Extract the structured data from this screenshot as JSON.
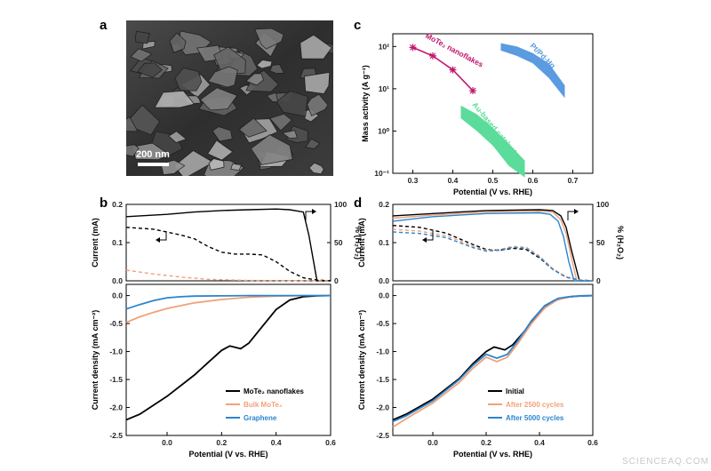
{
  "figure": {
    "panel_letters": [
      "a",
      "b",
      "c",
      "d"
    ],
    "sem_scalebar_label": "200 nm",
    "watermark": "SCIENCEAQ.COM"
  },
  "chart_data": [
    {
      "id": "c",
      "type": "line",
      "xlabel": "Potential (V vs. RHE)",
      "ylabel": "Mass activity (A g⁻¹)",
      "yscale": "log",
      "xlim": [
        0.25,
        0.75
      ],
      "ylim": [
        0.1,
        200
      ],
      "xticks": [
        0.3,
        0.4,
        0.5,
        0.6,
        0.7
      ],
      "yticks": [
        0.1,
        1,
        10,
        100
      ],
      "ytick_labels": [
        "10⁻¹",
        "10⁰",
        "10¹",
        "10²"
      ],
      "series": [
        {
          "name": "MoTe₂ nanoflakes",
          "color": "#c0176f",
          "x": [
            0.3,
            0.35,
            0.4,
            0.45
          ],
          "y": [
            95,
            60,
            28,
            9
          ]
        }
      ],
      "bands": [
        {
          "name": "Pt/Pd-Hg",
          "color": "#5b9be0",
          "x": [
            0.52,
            0.56,
            0.6,
            0.64,
            0.68
          ],
          "upper": [
            120,
            100,
            70,
            40,
            12
          ],
          "lower": [
            80,
            60,
            40,
            18,
            6
          ]
        },
        {
          "name": "Au-based catalysts",
          "color": "#5bdc9a",
          "x": [
            0.42,
            0.46,
            0.5,
            0.54,
            0.58
          ],
          "upper": [
            4,
            2.5,
            1.2,
            0.5,
            0.2
          ],
          "lower": [
            2,
            1,
            0.45,
            0.15,
            0.08
          ]
        }
      ]
    },
    {
      "id": "b_top",
      "type": "line",
      "ylabel_left": "Current (mA)",
      "ylabel_right": "% (H₂O₂)",
      "xlim": [
        -0.15,
        0.6
      ],
      "ylim_left": [
        0,
        0.2
      ],
      "ylim_right": [
        0,
        100
      ],
      "yticks_left": [
        0.0,
        0.1,
        0.2
      ],
      "yticks_right": [
        0,
        50,
        100
      ],
      "series": [
        {
          "name": "MoTe₂ nanoflakes H₂O₂ %",
          "axis": "right",
          "color": "#000000",
          "style": "solid",
          "x": [
            -0.15,
            0.0,
            0.1,
            0.2,
            0.3,
            0.4,
            0.45,
            0.5,
            0.52,
            0.55,
            0.6
          ],
          "y": [
            84,
            87,
            90,
            92,
            93,
            94,
            93,
            90,
            60,
            0,
            0
          ]
        },
        {
          "name": "MoTe₂ nanoflakes ring current",
          "axis": "left",
          "color": "#000000",
          "style": "dash",
          "x": [
            -0.15,
            -0.05,
            0.05,
            0.1,
            0.15,
            0.2,
            0.25,
            0.3,
            0.35,
            0.4,
            0.45,
            0.5,
            0.55,
            0.6
          ],
          "y": [
            0.14,
            0.135,
            0.12,
            0.11,
            0.09,
            0.075,
            0.07,
            0.07,
            0.068,
            0.05,
            0.025,
            0.008,
            0.002,
            0.0
          ]
        },
        {
          "name": "Bulk MoTe₂ ring current",
          "axis": "left",
          "color": "#f0a27a",
          "style": "dash",
          "x": [
            -0.15,
            -0.05,
            0.05,
            0.15,
            0.3,
            0.6
          ],
          "y": [
            0.028,
            0.018,
            0.01,
            0.004,
            0.001,
            0.0
          ]
        }
      ]
    },
    {
      "id": "b_bottom",
      "type": "line",
      "xlabel": "Potential (V vs. RHE)",
      "ylabel": "Current density (mA cm⁻²)",
      "xlim": [
        -0.15,
        0.6
      ],
      "ylim": [
        -2.5,
        0.2
      ],
      "xticks": [
        0.0,
        0.2,
        0.4,
        0.6
      ],
      "yticks": [
        0.0,
        -0.5,
        -1.0,
        -1.5,
        -2.0,
        -2.5
      ],
      "legend_position": "bottom-right",
      "series": [
        {
          "name": "MoTe₂ nanoflakes",
          "color": "#000000",
          "x": [
            -0.15,
            -0.1,
            0.0,
            0.1,
            0.15,
            0.2,
            0.23,
            0.27,
            0.3,
            0.35,
            0.4,
            0.45,
            0.5,
            0.55,
            0.6
          ],
          "y": [
            -2.22,
            -2.12,
            -1.8,
            -1.42,
            -1.2,
            -0.98,
            -0.9,
            -0.95,
            -0.85,
            -0.55,
            -0.25,
            -0.08,
            -0.02,
            -0.005,
            0.0
          ]
        },
        {
          "name": "Bulk MoTe₂",
          "color": "#f0a27a",
          "x": [
            -0.15,
            -0.1,
            -0.05,
            0.0,
            0.1,
            0.2,
            0.3,
            0.4,
            0.5,
            0.6
          ],
          "y": [
            -0.48,
            -0.38,
            -0.3,
            -0.23,
            -0.13,
            -0.07,
            -0.03,
            -0.01,
            0.0,
            0.0
          ]
        },
        {
          "name": "Graphene",
          "color": "#2a85d0",
          "x": [
            -0.15,
            -0.1,
            -0.05,
            0.0,
            0.05,
            0.1,
            0.2,
            0.3,
            0.6
          ],
          "y": [
            -0.24,
            -0.16,
            -0.09,
            -0.04,
            -0.02,
            -0.01,
            -0.005,
            0.0,
            0.0
          ]
        }
      ]
    },
    {
      "id": "d_top",
      "type": "line",
      "ylabel_left": "Current (mA)",
      "ylabel_right": "% (H₂O₂)",
      "xlim": [
        -0.15,
        0.6
      ],
      "ylim_left": [
        0,
        0.2
      ],
      "ylim_right": [
        0,
        100
      ],
      "yticks_left": [
        0.0,
        0.1,
        0.2
      ],
      "yticks_right": [
        0,
        50,
        100
      ],
      "series": [
        {
          "name": "Initial H₂O₂ %",
          "axis": "right",
          "color": "#000000",
          "style": "solid",
          "x": [
            -0.15,
            0.0,
            0.2,
            0.4,
            0.45,
            0.48,
            0.5,
            0.52,
            0.55,
            0.6
          ],
          "y": [
            85,
            88,
            92,
            93,
            92,
            85,
            70,
            40,
            0,
            0
          ]
        },
        {
          "name": "After 2500 cycles H₂O₂ %",
          "axis": "right",
          "color": "#f0a27a",
          "style": "solid",
          "x": [
            -0.15,
            0.0,
            0.2,
            0.4,
            0.45,
            0.48,
            0.5,
            0.52,
            0.54,
            0.6
          ],
          "y": [
            82,
            86,
            90,
            91,
            90,
            80,
            62,
            30,
            0,
            0
          ]
        },
        {
          "name": "After 5000 cycles H₂O₂ %",
          "axis": "right",
          "color": "#2a85d0",
          "style": "solid",
          "x": [
            -0.15,
            0.0,
            0.2,
            0.4,
            0.44,
            0.47,
            0.49,
            0.51,
            0.53,
            0.6
          ],
          "y": [
            78,
            84,
            88,
            89,
            87,
            78,
            58,
            25,
            0,
            0
          ]
        },
        {
          "name": "Initial ring current",
          "axis": "left",
          "color": "#000000",
          "style": "dash",
          "x": [
            -0.15,
            -0.05,
            0.05,
            0.1,
            0.15,
            0.2,
            0.25,
            0.3,
            0.35,
            0.4,
            0.45,
            0.5,
            0.55,
            0.6
          ],
          "y": [
            0.145,
            0.14,
            0.125,
            0.11,
            0.095,
            0.082,
            0.08,
            0.085,
            0.082,
            0.06,
            0.03,
            0.01,
            0.002,
            0.0
          ]
        },
        {
          "name": "After 2500 cycles ring current",
          "axis": "left",
          "color": "#f0a27a",
          "style": "dash",
          "x": [
            -0.15,
            -0.05,
            0.05,
            0.1,
            0.15,
            0.2,
            0.25,
            0.3,
            0.35,
            0.4,
            0.45,
            0.5,
            0.55,
            0.6
          ],
          "y": [
            0.135,
            0.13,
            0.118,
            0.105,
            0.09,
            0.08,
            0.082,
            0.09,
            0.088,
            0.065,
            0.032,
            0.01,
            0.002,
            0.0
          ]
        },
        {
          "name": "After 5000 cycles ring current",
          "axis": "left",
          "color": "#2a85d0",
          "style": "dash",
          "x": [
            -0.15,
            -0.05,
            0.05,
            0.1,
            0.15,
            0.2,
            0.25,
            0.3,
            0.35,
            0.4,
            0.45,
            0.5,
            0.55,
            0.6
          ],
          "y": [
            0.128,
            0.124,
            0.113,
            0.1,
            0.087,
            0.078,
            0.08,
            0.088,
            0.085,
            0.062,
            0.03,
            0.009,
            0.002,
            0.0
          ]
        }
      ]
    },
    {
      "id": "d_bottom",
      "type": "line",
      "xlabel": "Potential (V vs. RHE)",
      "ylabel": "Current density (mA cm⁻²)",
      "xlim": [
        -0.15,
        0.6
      ],
      "ylim": [
        -2.5,
        0.2
      ],
      "xticks": [
        0.0,
        0.2,
        0.4,
        0.6
      ],
      "yticks": [
        0.0,
        -0.5,
        -1.0,
        -1.5,
        -2.0,
        -2.5
      ],
      "legend_position": "bottom-right",
      "series": [
        {
          "name": "Initial",
          "color": "#000000",
          "x": [
            -0.15,
            -0.1,
            0.0,
            0.1,
            0.15,
            0.2,
            0.23,
            0.27,
            0.3,
            0.35,
            0.4,
            0.45,
            0.5,
            0.55,
            0.6
          ],
          "y": [
            -2.22,
            -2.12,
            -1.85,
            -1.48,
            -1.22,
            -1.0,
            -0.92,
            -0.97,
            -0.88,
            -0.6,
            -0.3,
            -0.1,
            -0.03,
            -0.008,
            0.0
          ]
        },
        {
          "name": "After 2500 cycles",
          "color": "#f0a27a",
          "x": [
            -0.15,
            -0.1,
            0.0,
            0.1,
            0.15,
            0.2,
            0.24,
            0.28,
            0.32,
            0.37,
            0.42,
            0.47,
            0.52,
            0.56,
            0.6
          ],
          "y": [
            -2.35,
            -2.2,
            -1.92,
            -1.55,
            -1.3,
            -1.1,
            -1.18,
            -1.1,
            -0.85,
            -0.5,
            -0.22,
            -0.07,
            -0.02,
            -0.005,
            0.0
          ]
        },
        {
          "name": "After 5000 cycles",
          "color": "#2a85d0",
          "x": [
            -0.15,
            -0.1,
            0.0,
            0.1,
            0.15,
            0.2,
            0.24,
            0.28,
            0.32,
            0.37,
            0.42,
            0.47,
            0.52,
            0.56,
            0.6
          ],
          "y": [
            -2.25,
            -2.15,
            -1.88,
            -1.5,
            -1.25,
            -1.05,
            -1.12,
            -1.05,
            -0.8,
            -0.45,
            -0.18,
            -0.05,
            -0.015,
            -0.004,
            0.0
          ]
        }
      ]
    }
  ]
}
